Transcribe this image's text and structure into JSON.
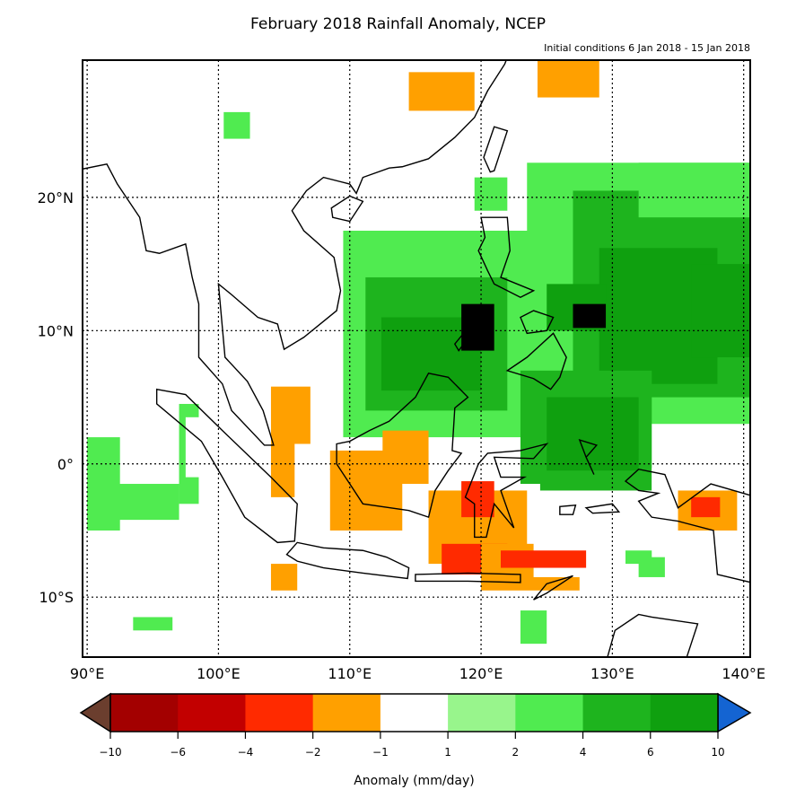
{
  "title": "February 2018 Rainfall Anomaly, NCEP",
  "subtitle": "Initial conditions 6 Jan 2018 - 15 Jan 2018",
  "map": {
    "lon_range": [
      89.65,
      140.5
    ],
    "lat_range": [
      -14.5,
      30.3
    ],
    "gridlines": "dotted",
    "lon_ticks": [
      {
        "value": 90,
        "label": "90°E"
      },
      {
        "value": 100,
        "label": "100°E"
      },
      {
        "value": 110,
        "label": "110°E"
      },
      {
        "value": 120,
        "label": "120°E"
      },
      {
        "value": 130,
        "label": "130°E"
      },
      {
        "value": 140,
        "label": "140°E"
      }
    ],
    "lat_ticks": [
      {
        "value": 20,
        "label": "20°N"
      },
      {
        "value": 10,
        "label": "10°N"
      },
      {
        "value": 0,
        "label": "0°"
      },
      {
        "value": -10,
        "label": "10°S"
      }
    ],
    "anomaly_regions_note_units": "lon0, lon1, lat0, lat1, anomaly class index",
    "anomaly_regions": [
      [
        92.5,
        94.6,
        28.4,
        30.5,
        4
      ],
      [
        110.4,
        121.5,
        24.2,
        29.4,
        4
      ],
      [
        114.5,
        119.5,
        26.5,
        29.4,
        3
      ],
      [
        121.5,
        130.4,
        27.4,
        30.5,
        4
      ],
      [
        124.3,
        129,
        27.5,
        30.5,
        3
      ],
      [
        131.5,
        137,
        26.4,
        27.4,
        4
      ],
      [
        100.4,
        102.4,
        24.4,
        26.4,
        6
      ],
      [
        119.5,
        122,
        19,
        21.5,
        6
      ],
      [
        123.5,
        140.5,
        3,
        22.6,
        6
      ],
      [
        127,
        140.5,
        5,
        20.5,
        7
      ],
      [
        132,
        140.5,
        18.5,
        22.6,
        6
      ],
      [
        129,
        138,
        6,
        16.2,
        8
      ],
      [
        136,
        140.5,
        8,
        15,
        8
      ],
      [
        125,
        129.5,
        10,
        13.5,
        8
      ],
      [
        127,
        129.5,
        10.2,
        12,
        9
      ],
      [
        109.5,
        124,
        2,
        17.5,
        6
      ],
      [
        111.2,
        122,
        4,
        14,
        7
      ],
      [
        112.4,
        120,
        5.5,
        11,
        8
      ],
      [
        118.5,
        121,
        8.5,
        12,
        9
      ],
      [
        123,
        133,
        -2,
        7,
        7
      ],
      [
        125,
        132,
        -0.5,
        5,
        8
      ],
      [
        97,
        98.5,
        -3,
        4.5,
        6
      ],
      [
        90,
        97,
        -4.2,
        -1.5,
        6
      ],
      [
        90,
        92.5,
        -5,
        2,
        6
      ],
      [
        97.5,
        100,
        -1,
        3.5,
        4
      ],
      [
        102,
        104.5,
        2,
        5.5,
        4
      ],
      [
        103.5,
        109,
        -4,
        6,
        4
      ],
      [
        104,
        107,
        -2.5,
        5.8,
        3
      ],
      [
        105.8,
        118,
        -6,
        1.5,
        4
      ],
      [
        108.5,
        116,
        -5,
        1,
        3
      ],
      [
        112.5,
        116,
        -3,
        2.5,
        3
      ],
      [
        114,
        124.5,
        -8.5,
        -1.5,
        4
      ],
      [
        116,
        123.5,
        -7.5,
        -2,
        3
      ],
      [
        118.5,
        121,
        -4,
        -1.3,
        2
      ],
      [
        117,
        122,
        -8.3,
        -6,
        2
      ],
      [
        120,
        127.5,
        -9.5,
        -6,
        3
      ],
      [
        124,
        129.5,
        -8.5,
        -5.5,
        4
      ],
      [
        121.5,
        128,
        -7.8,
        -6.5,
        2
      ],
      [
        128.5,
        131.5,
        -9.3,
        -5.5,
        4
      ],
      [
        133,
        140.5,
        -6.5,
        -0.3,
        4
      ],
      [
        135,
        139.5,
        -5,
        -2,
        3
      ],
      [
        136,
        138.2,
        -4,
        -2.5,
        2
      ],
      [
        99.5,
        102.5,
        -8.5,
        -5.5,
        4
      ],
      [
        102.5,
        112.5,
        -11.5,
        -6.5,
        4
      ],
      [
        104,
        106,
        -9.5,
        -7.5,
        3
      ],
      [
        90,
        92.5,
        -9.5,
        -8.5,
        4
      ],
      [
        93.5,
        96.5,
        -12.5,
        -11.5,
        6
      ],
      [
        133.5,
        136,
        -14.5,
        -12.5,
        4
      ],
      [
        90,
        91,
        -13.5,
        -12.5,
        4
      ],
      [
        92,
        93,
        -14.5,
        -13.5,
        4
      ],
      [
        123,
        125,
        -13.5,
        -11,
        6
      ],
      [
        131,
        133,
        -7.5,
        -6.5,
        6
      ],
      [
        132,
        134,
        -8.5,
        -7,
        6
      ]
    ]
  },
  "colorbar": {
    "label": "Anomaly (mm/day)",
    "tick_labels": [
      "−10",
      "−6",
      "−4",
      "−2",
      "−1",
      "1",
      "2",
      "4",
      "6",
      "10"
    ],
    "colors": [
      "#a30000",
      "#c20000",
      "#ff2a00",
      "#ffa000",
      "#ffffff",
      "#98f58c",
      "#50eb50",
      "#1eb41e",
      "#0fa00f"
    ],
    "under_color": "#6b3e2e",
    "over_color": "#1464d2"
  }
}
